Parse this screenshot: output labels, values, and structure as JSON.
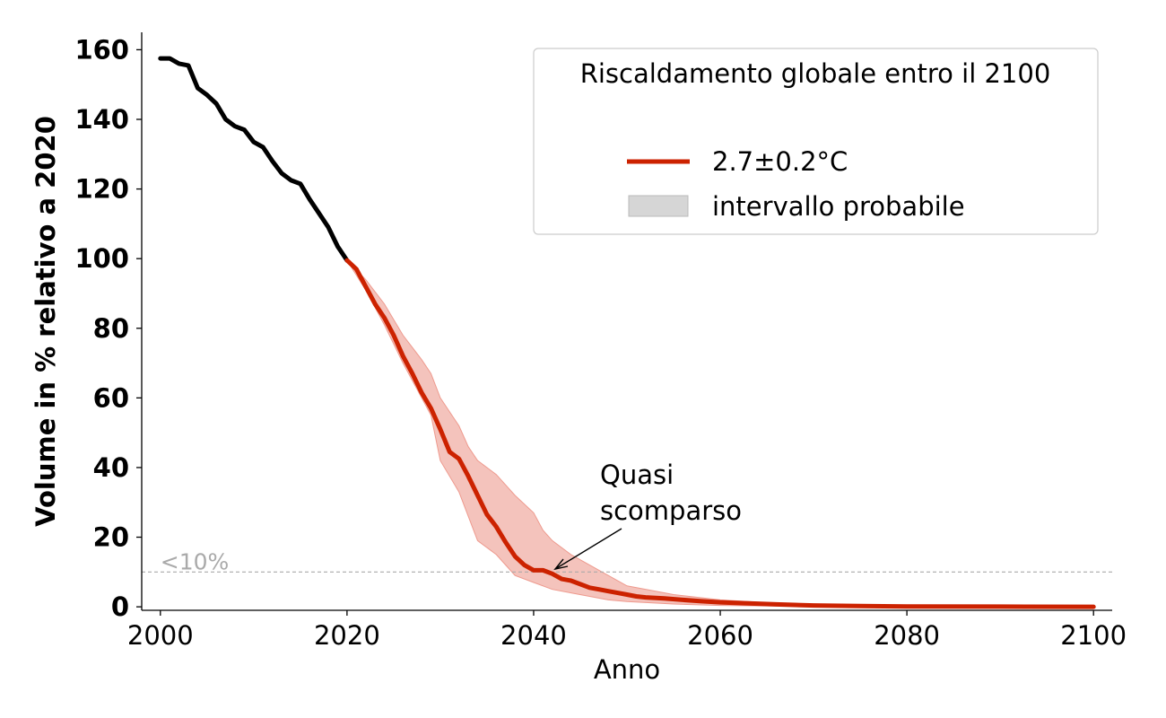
{
  "chart_data": {
    "type": "line",
    "xlabel": "Anno",
    "ylabel": "Volume in % relativo a 2020",
    "xlim": [
      1998,
      2102
    ],
    "ylim": [
      -1,
      165
    ],
    "x_ticks": [
      2000,
      2020,
      2040,
      2060,
      2080,
      2100
    ],
    "y_ticks": [
      0,
      20,
      40,
      60,
      80,
      100,
      120,
      140,
      160
    ],
    "grid": false,
    "legend": {
      "title": "Riscaldamento globale entro il 2100",
      "placement": "top-right",
      "entries": [
        "2.7±0.2°C",
        "intervallo probabile"
      ]
    },
    "colors": {
      "historical": "#000000",
      "projection": "#cc2200",
      "band": "#f4c3bc",
      "legend_band": "#d6d6d6",
      "threshold": "#aaaaaa"
    },
    "series": [
      {
        "values": [
          [
            2000,
            157.5
          ],
          [
            2001,
            157.5
          ],
          [
            2002,
            156
          ],
          [
            2003,
            155.5
          ],
          [
            2004,
            149
          ],
          [
            2005,
            147
          ],
          [
            2006,
            144.5
          ],
          [
            2007,
            140
          ],
          [
            2008,
            138
          ],
          [
            2009,
            137
          ],
          [
            2010,
            133.5
          ],
          [
            2011,
            132
          ],
          [
            2012,
            128
          ],
          [
            2013,
            124.5
          ],
          [
            2014,
            122.5
          ],
          [
            2015,
            121.5
          ],
          [
            2016,
            117
          ],
          [
            2017,
            113
          ],
          [
            2018,
            109
          ],
          [
            2019,
            103.5
          ],
          [
            2020,
            99.5
          ]
        ]
      },
      {
        "name": "2.7±0.2°C",
        "values": [
          [
            2020,
            99.5
          ],
          [
            2021,
            97
          ],
          [
            2022,
            92
          ],
          [
            2023,
            87
          ],
          [
            2024,
            83
          ],
          [
            2025,
            78
          ],
          [
            2026,
            72
          ],
          [
            2027,
            67
          ],
          [
            2028,
            61.5
          ],
          [
            2029,
            57
          ],
          [
            2030,
            51
          ],
          [
            2031,
            44.5
          ],
          [
            2032,
            42.5
          ],
          [
            2033,
            37.5
          ],
          [
            2034,
            32
          ],
          [
            2035,
            26.5
          ],
          [
            2036,
            23
          ],
          [
            2037,
            18.5
          ],
          [
            2038,
            14.5
          ],
          [
            2039,
            12
          ],
          [
            2040,
            10.5
          ],
          [
            2041,
            10.5
          ],
          [
            2042,
            9.5
          ],
          [
            2043,
            8
          ],
          [
            2044,
            7.5
          ],
          [
            2045,
            6.5
          ],
          [
            2046,
            5.5
          ],
          [
            2047,
            5
          ],
          [
            2048,
            4.5
          ],
          [
            2049,
            4
          ],
          [
            2050,
            3.5
          ],
          [
            2051,
            3
          ],
          [
            2052,
            2.7
          ],
          [
            2054,
            2.4
          ],
          [
            2056,
            2
          ],
          [
            2058,
            1.6
          ],
          [
            2060,
            1.3
          ],
          [
            2063,
            1
          ],
          [
            2066,
            0.7
          ],
          [
            2070,
            0.4
          ],
          [
            2075,
            0.2
          ],
          [
            2080,
            0.1
          ],
          [
            2090,
            0.05
          ],
          [
            2100,
            0
          ]
        ]
      },
      {
        "name": "intervallo probabile",
        "upper": [
          [
            2020,
            99.5
          ],
          [
            2022,
            94
          ],
          [
            2024,
            87
          ],
          [
            2026,
            78
          ],
          [
            2028,
            71
          ],
          [
            2029,
            67
          ],
          [
            2030,
            60
          ],
          [
            2032,
            52
          ],
          [
            2033,
            46
          ],
          [
            2034,
            42
          ],
          [
            2036,
            38
          ],
          [
            2038,
            32
          ],
          [
            2040,
            27
          ],
          [
            2041,
            22
          ],
          [
            2042,
            19
          ],
          [
            2044,
            15
          ],
          [
            2046,
            12
          ],
          [
            2048,
            9
          ],
          [
            2050,
            6
          ],
          [
            2055,
            3.5
          ],
          [
            2060,
            2
          ],
          [
            2065,
            1.2
          ],
          [
            2070,
            0.7
          ],
          [
            2080,
            0.3
          ],
          [
            2100,
            0.1
          ]
        ],
        "lower": [
          [
            2020,
            99.5
          ],
          [
            2022,
            91
          ],
          [
            2024,
            81
          ],
          [
            2026,
            70
          ],
          [
            2028,
            60
          ],
          [
            2029,
            55
          ],
          [
            2030,
            42
          ],
          [
            2032,
            33
          ],
          [
            2034,
            19
          ],
          [
            2036,
            15
          ],
          [
            2038,
            9
          ],
          [
            2040,
            7
          ],
          [
            2042,
            5
          ],
          [
            2044,
            4
          ],
          [
            2046,
            3
          ],
          [
            2048,
            2
          ],
          [
            2050,
            1.5
          ],
          [
            2055,
            0.8
          ],
          [
            2060,
            0.4
          ],
          [
            2070,
            0.1
          ],
          [
            2080,
            0
          ],
          [
            2100,
            0
          ]
        ]
      }
    ],
    "threshold": {
      "y": 10,
      "label": "<10%"
    },
    "annotation": {
      "lines": [
        "Quasi",
        "scomparso"
      ],
      "xy": [
        2042,
        10.5
      ],
      "xytext": [
        2047,
        29
      ]
    }
  }
}
